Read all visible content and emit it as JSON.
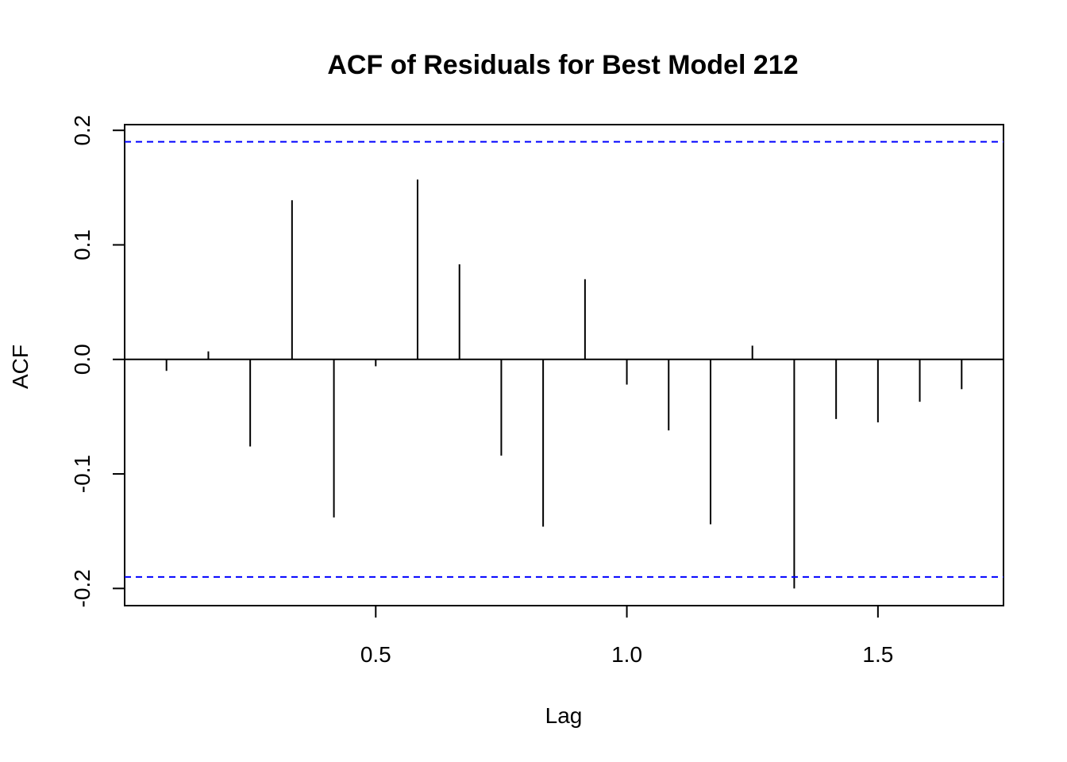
{
  "chart_data": {
    "type": "acf",
    "title": "ACF of Residuals for Best Model 212",
    "xlabel": "Lag",
    "ylabel": "ACF",
    "xlim": [
      0.0,
      1.75
    ],
    "ylim": [
      -0.215,
      0.205
    ],
    "x_ticks": [
      {
        "value": 0.5,
        "label": "0.5"
      },
      {
        "value": 1.0,
        "label": "1.0"
      },
      {
        "value": 1.5,
        "label": "1.5"
      }
    ],
    "y_ticks": [
      {
        "value": -0.2,
        "label": "-0.2"
      },
      {
        "value": -0.1,
        "label": "-0.1"
      },
      {
        "value": 0.0,
        "label": "0.0"
      },
      {
        "value": 0.1,
        "label": "0.1"
      },
      {
        "value": 0.2,
        "label": "0.2"
      }
    ],
    "confidence_bound": 0.19,
    "confidence_color": "#0000ff",
    "zero_line": true,
    "series": [
      {
        "x": [
          0.0833,
          0.1667,
          0.25,
          0.3333,
          0.4167,
          0.5,
          0.5833,
          0.6667,
          0.75,
          0.8333,
          0.9167,
          1.0,
          1.0833,
          1.1667,
          1.25,
          1.3333,
          1.4167,
          1.5,
          1.5833,
          1.6667
        ],
        "values": [
          -0.01,
          0.007,
          -0.076,
          0.139,
          -0.138,
          -0.006,
          0.157,
          0.083,
          -0.084,
          -0.146,
          0.07,
          -0.022,
          -0.062,
          -0.144,
          0.012,
          -0.2,
          -0.052,
          -0.055,
          -0.037,
          -0.026
        ]
      }
    ]
  }
}
